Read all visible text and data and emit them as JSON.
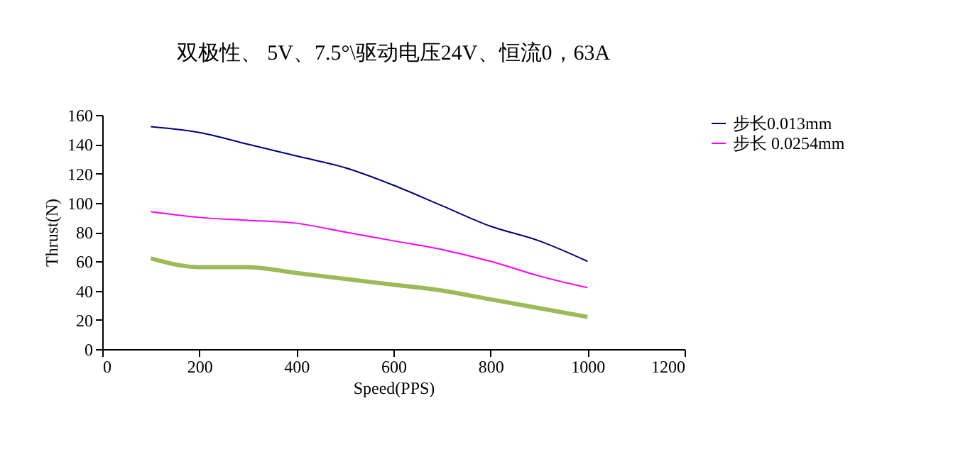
{
  "chart_data": {
    "type": "line",
    "title": "双极性、 5V、7.5°\\驱动电压24V、恒流0，63A",
    "xlabel": "Speed(PPS)",
    "ylabel": "Thrust(N)",
    "x": [
      100,
      200,
      300,
      400,
      500,
      600,
      700,
      800,
      900,
      1000
    ],
    "series": [
      {
        "name": "步长0.013mm",
        "color": "#000080",
        "values": [
          152,
          148,
          140,
          132,
          124,
          112,
          98,
          84,
          74,
          60
        ]
      },
      {
        "name": "步长 0.0254mm",
        "color": "#ff00ff",
        "values": [
          94,
          90,
          88,
          86,
          80,
          74,
          68,
          60,
          50,
          42
        ]
      },
      {
        "color": "#9bbb59",
        "values": [
          62,
          56,
          56,
          52,
          48,
          44,
          40,
          34,
          28,
          22
        ]
      }
    ],
    "xlim": [
      0,
      1200
    ],
    "xticks": [
      0,
      200,
      400,
      600,
      800,
      1000,
      1200
    ],
    "ylim": [
      0,
      160
    ],
    "yticks": [
      0,
      20,
      40,
      60,
      80,
      100,
      120,
      140,
      160
    ],
    "grid": false,
    "legend": "right",
    "marker": "none",
    "line_style": "solid"
  }
}
